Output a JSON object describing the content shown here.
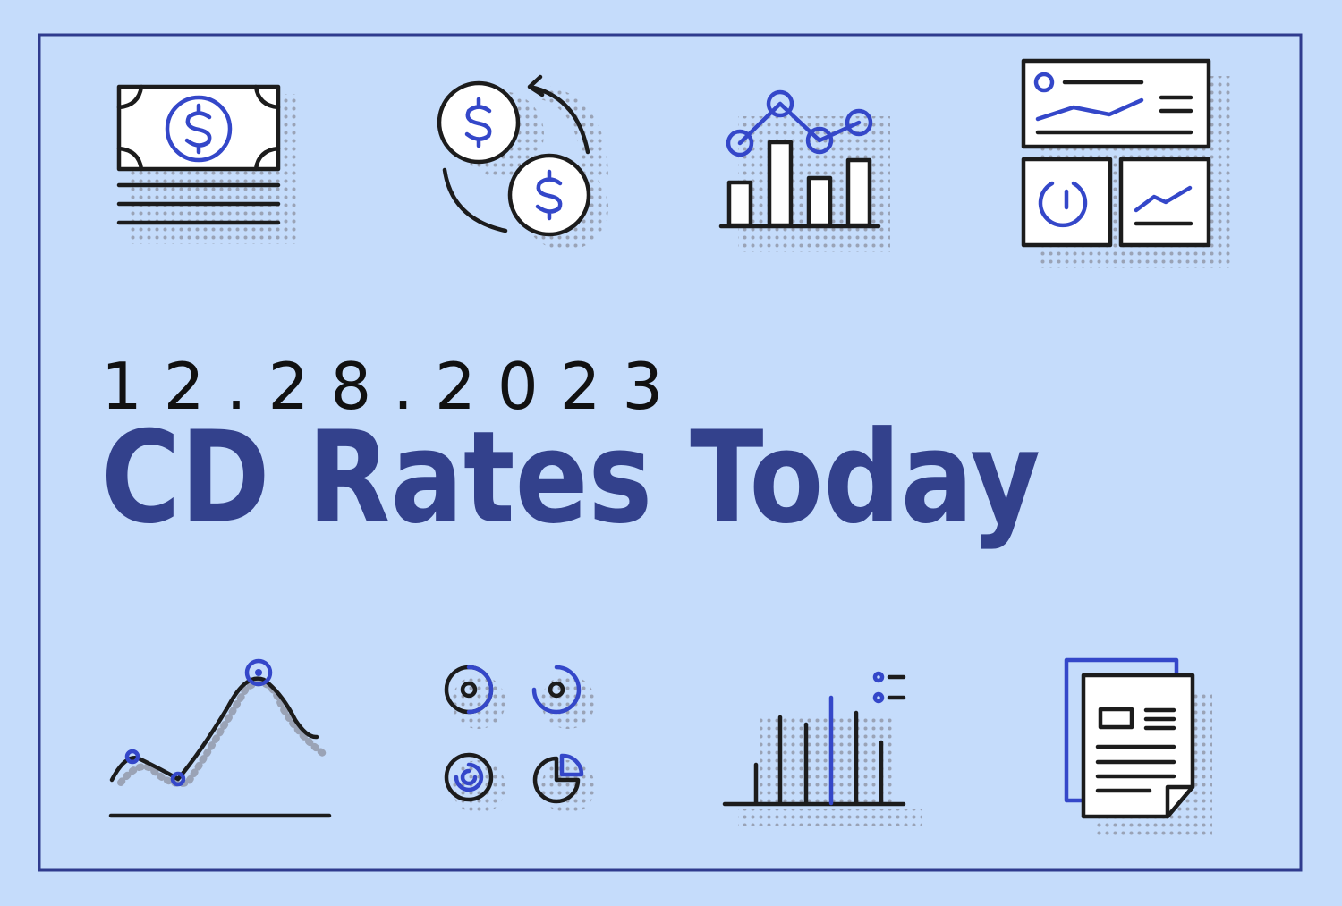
{
  "date": "12.28.2023",
  "title": "CD Rates Today"
}
